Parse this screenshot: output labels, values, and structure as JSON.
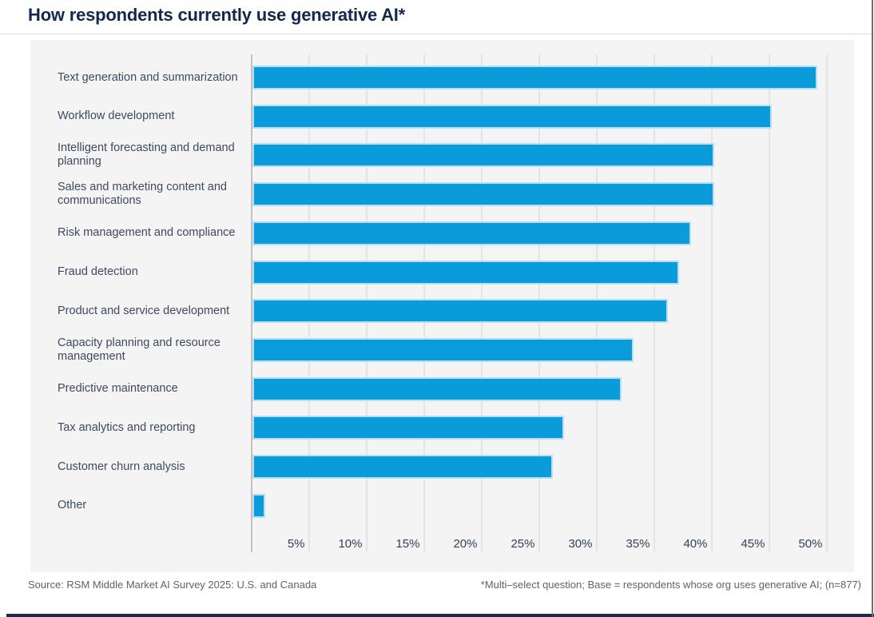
{
  "title": "How respondents currently use generative AI*",
  "footer": {
    "source": "Source: RSM Middle Market AI Survey 2025: U.S. and Canada",
    "note": "*Multi–select question; Base = respondents whose org uses generative AI; (n=877)"
  },
  "colors": {
    "bar": "#0a9bdb",
    "bar_border": "#b7def3",
    "title": "#14284b",
    "label": "#3e4a62",
    "tick": "#33405a",
    "panel_bg": "#f4f4f4",
    "gridline": "#e4e4e4",
    "axis": "#c2c2c2",
    "footer_text": "#5f6368",
    "bottom_bar": "#1b2a4a"
  },
  "chart_data": {
    "type": "bar",
    "orientation": "horizontal",
    "title": "How respondents currently use generative AI*",
    "unit": "%",
    "categories": [
      "Text generation and summarization",
      "Workflow development",
      "Intelligent forecasting and demand planning",
      "Sales and marketing content and communications",
      "Risk management and compliance",
      "Fraud detection",
      "Product and service development",
      "Capacity planning and resource management",
      "Predictive maintenance",
      "Tax analytics and reporting",
      "Customer churn analysis",
      "Other"
    ],
    "values": [
      49,
      45,
      40,
      40,
      38,
      37,
      36,
      33,
      32,
      27,
      26,
      1
    ],
    "x_ticks": [
      "5%",
      "10%",
      "15%",
      "20%",
      "25%",
      "30%",
      "35%",
      "40%",
      "45%",
      "50%"
    ],
    "x_tick_values": [
      5,
      10,
      15,
      20,
      25,
      30,
      35,
      40,
      45,
      50
    ],
    "xlim": [
      0,
      52.5
    ],
    "grid": true,
    "legend": false
  }
}
